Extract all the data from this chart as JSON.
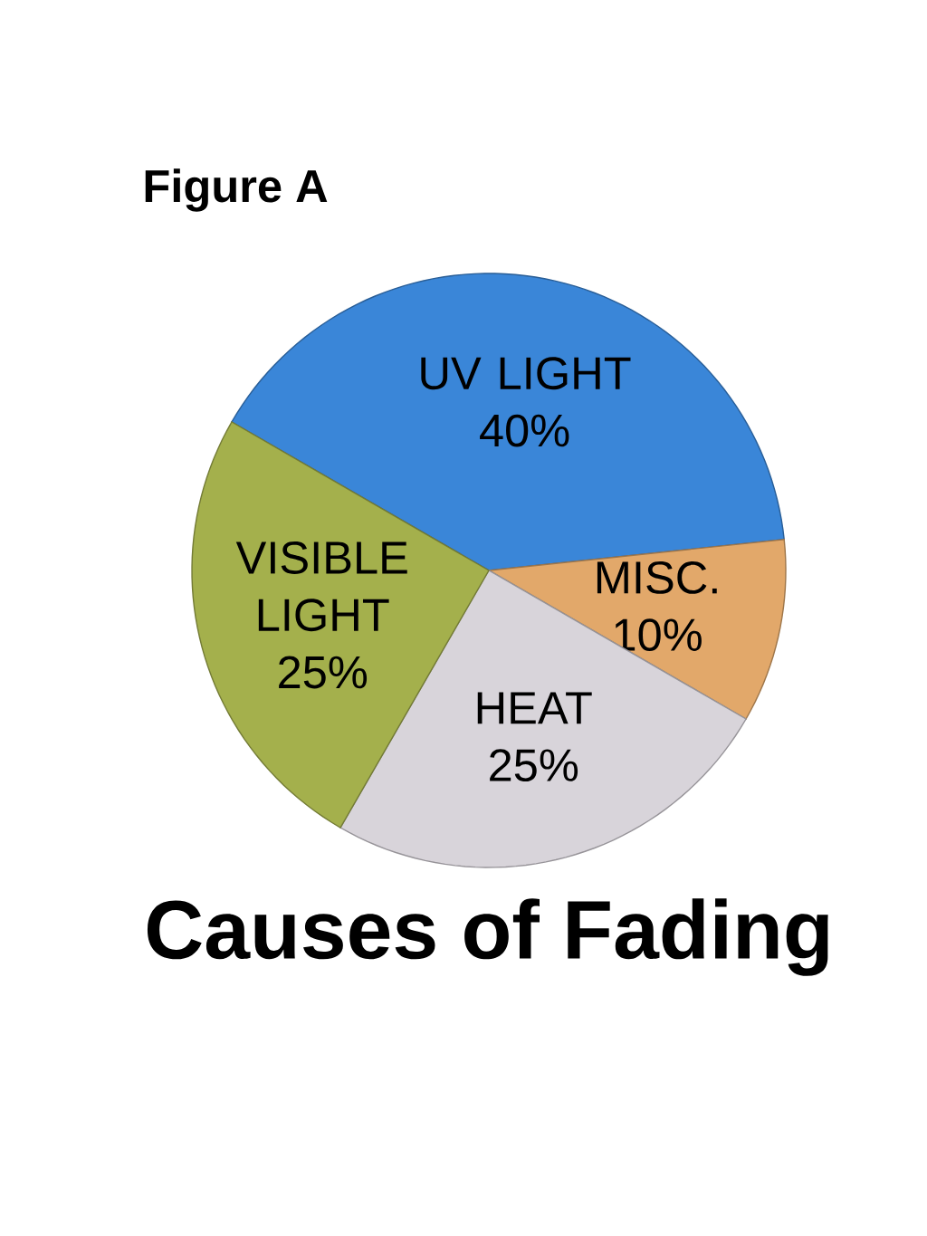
{
  "chart_data": {
    "type": "pie",
    "title": "Causes of Fading",
    "annotations": [
      "Figure A"
    ],
    "categories": [
      "UV LIGHT",
      "MISC.",
      "HEAT",
      "VISIBLE LIGHT"
    ],
    "values": [
      40,
      10,
      25,
      25
    ],
    "value_labels": [
      "40%",
      "10%",
      "25%",
      "25%"
    ],
    "colors": [
      "#3a86d8",
      "#e2a86a",
      "#d8d4da",
      "#a4b04c"
    ]
  }
}
